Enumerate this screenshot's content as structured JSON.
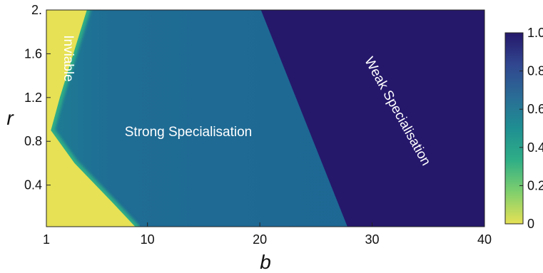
{
  "chart_data": {
    "type": "heatmap",
    "title": "",
    "xlabel": "b",
    "ylabel": "r",
    "xlim": [
      1,
      40
    ],
    "ylim": [
      0.02,
      2.0
    ],
    "x_ticks": [
      {
        "value": 1,
        "label": "1"
      },
      {
        "value": 10,
        "label": "10"
      },
      {
        "value": 20,
        "label": "20"
      },
      {
        "value": 30,
        "label": "30"
      },
      {
        "value": 40,
        "label": "40"
      }
    ],
    "y_ticks": [
      {
        "value": 0.4,
        "label": "0.4"
      },
      {
        "value": 0.8,
        "label": "0.8"
      },
      {
        "value": 1.2,
        "label": "1.2"
      },
      {
        "value": 1.6,
        "label": "1.6"
      },
      {
        "value": 2.0,
        "label": "2."
      }
    ],
    "colorbar": {
      "range": [
        0,
        1
      ],
      "ticks": [
        {
          "value": 0,
          "label": "0"
        },
        {
          "value": 0.2,
          "label": "0.2"
        },
        {
          "value": 0.4,
          "label": "0.4"
        },
        {
          "value": 0.6,
          "label": "0.6"
        },
        {
          "value": 0.8,
          "label": "0.8"
        },
        {
          "value": 1.0,
          "label": "1.0"
        }
      ],
      "colors": [
        "#e6e155",
        "#7fcf6d",
        "#2fae86",
        "#1f8f92",
        "#2a6c96",
        "#31468f",
        "#25186b"
      ]
    },
    "regions": [
      {
        "label": "Inviable",
        "value": 0.0,
        "boundary_b_vs_r": [
          [
            4.6,
            2.0
          ],
          [
            2.2,
            1.2
          ],
          [
            1.4,
            0.9
          ],
          [
            3.5,
            0.6
          ],
          [
            6.8,
            0.25
          ],
          [
            8.9,
            0.02
          ]
        ]
      },
      {
        "label": "Strong Specialisation",
        "value": 0.68
      },
      {
        "label": "Weak Specialisation",
        "value": 1.0,
        "boundary_b_vs_r": [
          [
            20.1,
            2.0
          ],
          [
            27.8,
            0.02
          ]
        ]
      }
    ]
  }
}
